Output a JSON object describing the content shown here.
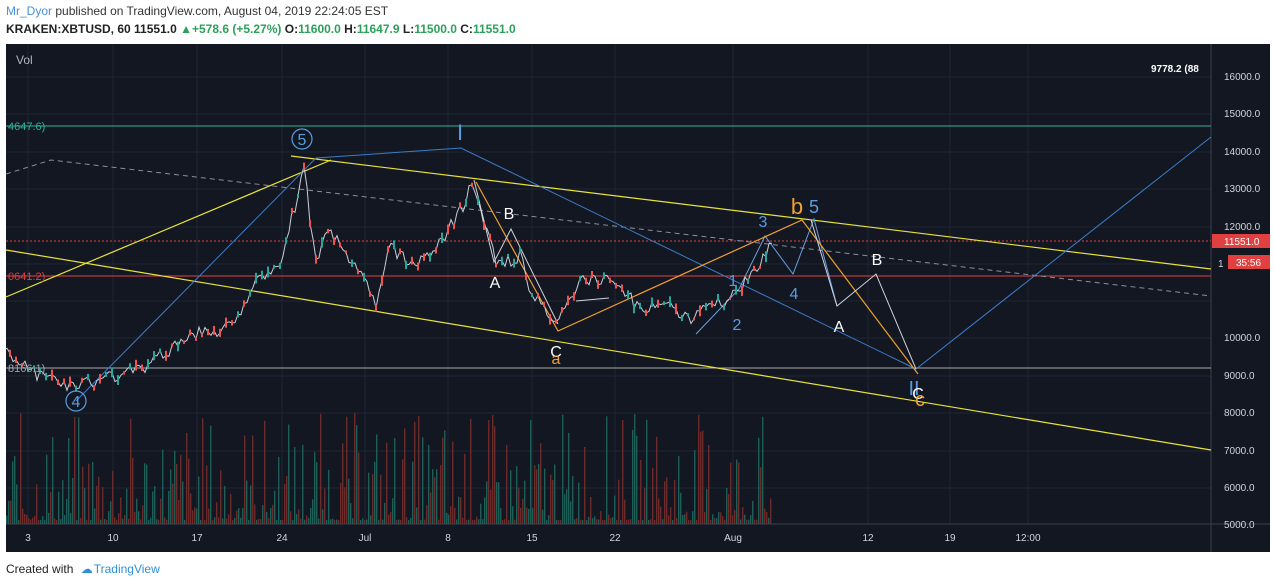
{
  "header": {
    "user": "Mr_Dyor",
    "published": "published on TradingView.com, August 04, 2019 22:24:05 EST",
    "symbol": "KRAKEN:XBTUSD, 60",
    "last": "11551.0",
    "change": "+578.6 (+5.27%)",
    "o_label": "O:",
    "o_val": "11600.0",
    "h_label": "H:",
    "h_val": "11647.9",
    "l_label": "L:",
    "l_val": "11500.0",
    "c_label": "C:",
    "c_val": "11551.0"
  },
  "vol_label": "Vol",
  "top_right_label": "9778.2 (88",
  "price_axis": [
    "16000.0",
    "15000.0",
    "14000.0",
    "13000.0",
    "12000.0",
    "11000.0",
    "10000.0",
    "9000.0",
    "8000.0",
    "7000.0",
    "6000.0",
    "5000.0"
  ],
  "current_price_tag": "11551.0",
  "countdown_tag": "35:56",
  "countdown_prefix": "1",
  "level_labels": {
    "upper": "4647.6)",
    "middle": "0641.2)",
    "lower": "8166.1)"
  },
  "time_axis": [
    "3",
    "10",
    "17",
    "24",
    "Jul",
    "8",
    "15",
    "22",
    "Aug",
    "12",
    "19",
    "12:00"
  ],
  "wave_labels": {
    "circle5": "5",
    "circle4": "4",
    "roman1": "I",
    "a1": "A",
    "b1": "B",
    "c1": "C",
    "a_orange": "a",
    "n1": "1",
    "n2": "2",
    "n3": "3",
    "n4": "4",
    "n5": "5",
    "b_orange": "b",
    "a2": "A",
    "b2": "B",
    "ii": "II",
    "c2": "C",
    "c_orange": "c"
  },
  "colors": {
    "background": "#131722",
    "yellow": "#e8e33a",
    "blue": "#3d7cc9",
    "orange": "#f0a030",
    "teal": "#2db39a",
    "red": "#e04040"
  },
  "footer": {
    "created_with": "Created with",
    "brand": "TradingView"
  },
  "chart_data": {
    "type": "candlestick",
    "symbol": "KRAKEN:XBTUSD",
    "interval": "60",
    "ohlc_last": {
      "open": 11600.0,
      "high": 11647.9,
      "low": 11500.0,
      "close": 11551.0
    },
    "ylim": [
      4500,
      16500
    ],
    "y_ticks": [
      5000,
      6000,
      7000,
      8000,
      9000,
      10000,
      11000,
      12000,
      13000,
      14000,
      15000,
      16000
    ],
    "x_ticks": [
      "3",
      "10",
      "17",
      "24",
      "Jul",
      "8",
      "15",
      "22",
      "Aug",
      "12",
      "19",
      "12:00"
    ],
    "horizontal_levels": [
      14647.6,
      11551.0,
      10641.2,
      8166.1
    ],
    "price_path": [
      [
        "Jun 1",
        8700
      ],
      [
        "Jun 4",
        8000
      ],
      [
        "Jun 7",
        7700
      ],
      [
        "Jun 10",
        8000
      ],
      [
        "Jun 13",
        8300
      ],
      [
        "Jun 17",
        9100
      ],
      [
        "Jun 20",
        9300
      ],
      [
        "Jun 22",
        10600
      ],
      [
        "Jun 24",
        11000
      ],
      [
        "Jun 26",
        13500
      ],
      [
        "Jun 27",
        11000
      ],
      [
        "Jun 28",
        12000
      ],
      [
        "Jul 1",
        10500
      ],
      [
        "Jul 2",
        9900
      ],
      [
        "Jul 3",
        11500
      ],
      [
        "Jul 5",
        11000
      ],
      [
        "Jul 7",
        11400
      ],
      [
        "Jul 9",
        12400
      ],
      [
        "Jul 10",
        13100
      ],
      [
        "Jul 12",
        11000
      ],
      [
        "Jul 14",
        11200
      ],
      [
        "Jul 15",
        10200
      ],
      [
        "Jul 17",
        9300
      ],
      [
        "Jul 19",
        10600
      ],
      [
        "Jul 22",
        10500
      ],
      [
        "Jul 24",
        9800
      ],
      [
        "Jul 26",
        9900
      ],
      [
        "Jul 28",
        9500
      ],
      [
        "Jul 31",
        10000
      ],
      [
        "Aug 2",
        10600
      ],
      [
        "Aug 4",
        11551
      ]
    ]
  }
}
